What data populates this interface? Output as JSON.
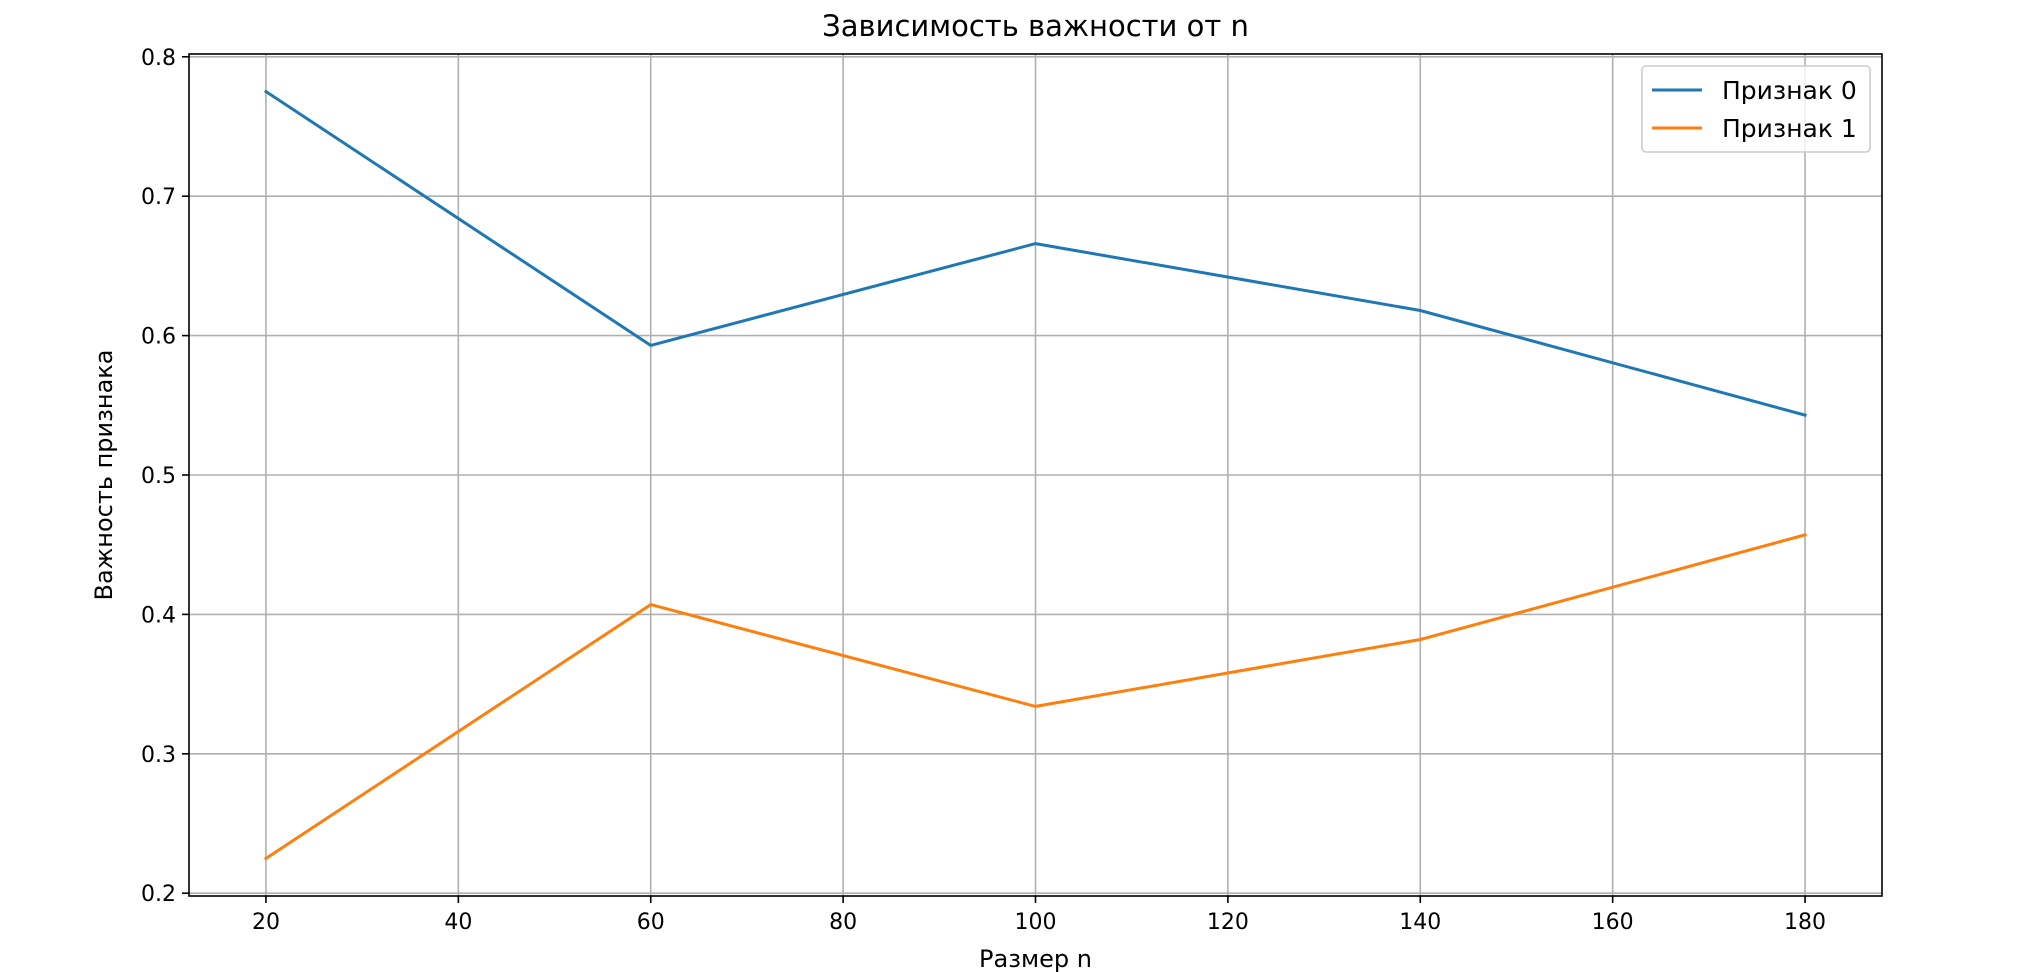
{
  "chart_data": {
    "type": "line",
    "title": "Зависимость важности от n",
    "xlabel": "Размер n",
    "ylabel": "Важность признака",
    "x": [
      20,
      60,
      100,
      140,
      180
    ],
    "series": [
      {
        "name": "Признак 0",
        "color": "#1f77b4",
        "values": [
          0.775,
          0.593,
          0.666,
          0.618,
          0.543
        ]
      },
      {
        "name": "Признак 1",
        "color": "#ff7f0e",
        "values": [
          0.225,
          0.407,
          0.334,
          0.382,
          0.457
        ]
      }
    ],
    "xlim": [
      12,
      188
    ],
    "ylim": [
      0.198,
      0.802
    ],
    "xticks": [
      20,
      40,
      60,
      80,
      100,
      120,
      140,
      160,
      180
    ],
    "yticks": [
      0.2,
      0.3,
      0.4,
      0.5,
      0.6,
      0.7,
      0.8
    ],
    "xtick_labels": [
      "20",
      "40",
      "60",
      "80",
      "100",
      "120",
      "140",
      "160",
      "180"
    ],
    "ytick_labels": [
      "0.2",
      "0.3",
      "0.4",
      "0.5",
      "0.6",
      "0.7",
      "0.8"
    ],
    "grid": true,
    "legend_position": "top-right"
  }
}
